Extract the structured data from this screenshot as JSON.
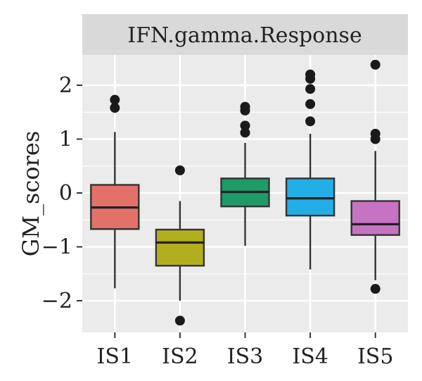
{
  "chart_data": {
    "type": "box",
    "panel_title": "IFN.gamma.Response",
    "xlabel": "",
    "ylabel": "GM_scores",
    "ylim": [
      -2.5,
      2.5
    ],
    "yticks": [
      -2,
      -1,
      0,
      1,
      2
    ],
    "ytick_labels": [
      "−2",
      "−1",
      "0",
      "1",
      "2"
    ],
    "grid": true,
    "legend": "none",
    "categories": [
      "IS1",
      "IS2",
      "IS3",
      "IS4",
      "IS5"
    ],
    "boxes": [
      {
        "category": "IS1",
        "color": "#E4706A",
        "whisker_low": -1.77,
        "q1": -0.67,
        "median": -0.27,
        "q3": 0.15,
        "whisker_high": 1.13,
        "outliers": [
          1.58,
          1.73
        ]
      },
      {
        "category": "IS2",
        "color": "#B3AE1E",
        "whisker_low": -2.0,
        "q1": -1.35,
        "median": -0.92,
        "q3": -0.68,
        "whisker_high": -0.15,
        "outliers": [
          0.42,
          -2.37
        ]
      },
      {
        "category": "IS3",
        "color": "#1E9B69",
        "whisker_low": -0.98,
        "q1": -0.25,
        "median": 0.02,
        "q3": 0.27,
        "whisker_high": 0.93,
        "outliers": [
          1.12,
          1.25,
          1.53,
          1.6
        ]
      },
      {
        "category": "IS4",
        "color": "#23AEE6",
        "whisker_low": -1.42,
        "q1": -0.42,
        "median": -0.1,
        "q3": 0.27,
        "whisker_high": 1.1,
        "outliers": [
          1.33,
          1.65,
          1.93,
          2.12,
          2.2
        ]
      },
      {
        "category": "IS5",
        "color": "#C673C4",
        "whisker_low": -1.62,
        "q1": -0.78,
        "median": -0.58,
        "q3": -0.15,
        "whisker_high": 0.78,
        "outliers": [
          1.0,
          1.1,
          2.38,
          -1.78
        ]
      }
    ]
  }
}
